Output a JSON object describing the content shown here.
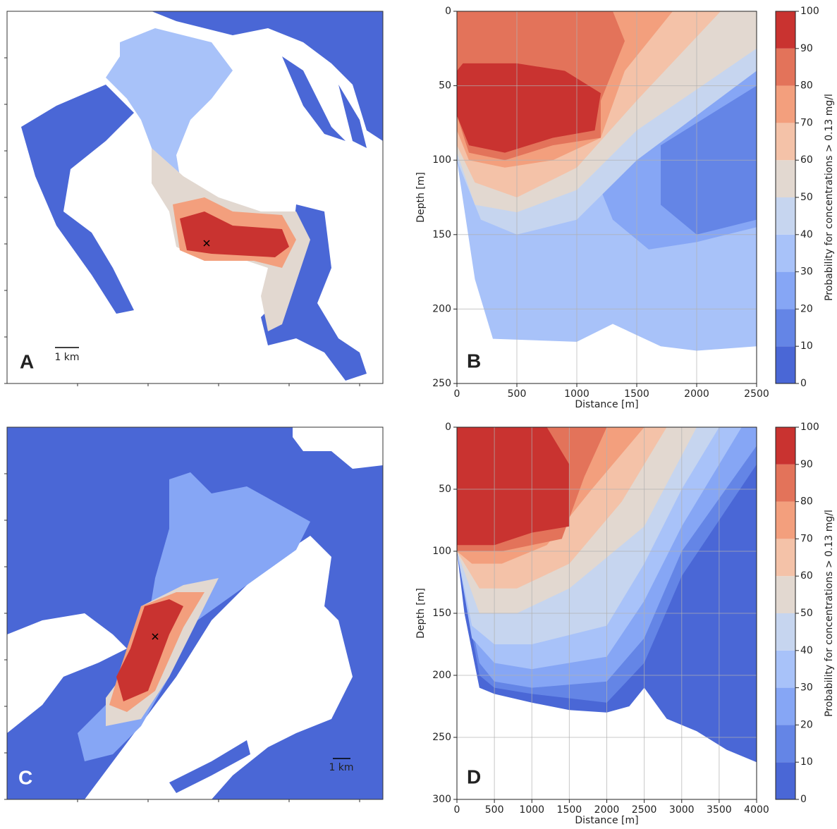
{
  "maps": [
    {
      "panel": "A",
      "scale_label": "1 km"
    },
    {
      "panel": "C",
      "scale_label": "1 km"
    }
  ],
  "chart_data": [
    {
      "type": "contour",
      "panel": "B",
      "xlabel": "Distance [m]",
      "ylabel": "Depth [m]",
      "xlim": [
        0,
        2500
      ],
      "ylim": [
        250,
        0
      ],
      "xticks": [
        0,
        500,
        1000,
        1500,
        2000,
        2500
      ],
      "yticks": [
        0,
        50,
        100,
        150,
        200,
        250
      ],
      "grid": true,
      "colorbar_label": "Probability for concentrations > 0.13 mg/l",
      "zticks": [
        0,
        10,
        20,
        30,
        40,
        50,
        60,
        70,
        80,
        90,
        100
      ],
      "colors": [
        "#4a67d6",
        "#6485e6",
        "#86a6f5",
        "#a8c2f9",
        "#c6d5ef",
        "#e2d8d0",
        "#f4c2a8",
        "#f39f7d",
        "#e3735a",
        "#c93330"
      ]
    },
    {
      "type": "contour",
      "panel": "D",
      "xlabel": "Distance [m]",
      "ylabel": "Depth [m]",
      "xlim": [
        0,
        4000
      ],
      "ylim": [
        300,
        0
      ],
      "xticks": [
        0,
        500,
        1000,
        1500,
        2000,
        2500,
        3000,
        3500,
        4000
      ],
      "yticks": [
        0,
        50,
        100,
        150,
        200,
        250,
        300
      ],
      "grid": true,
      "colorbar_label": "Probability for concentrations > 0.13 mg/l",
      "zticks": [
        0,
        10,
        20,
        30,
        40,
        50,
        60,
        70,
        80,
        90,
        100
      ],
      "colors": [
        "#4a67d6",
        "#6485e6",
        "#86a6f5",
        "#a8c2f9",
        "#c6d5ef",
        "#e2d8d0",
        "#f4c2a8",
        "#f39f7d",
        "#e3735a",
        "#c93330"
      ]
    }
  ]
}
